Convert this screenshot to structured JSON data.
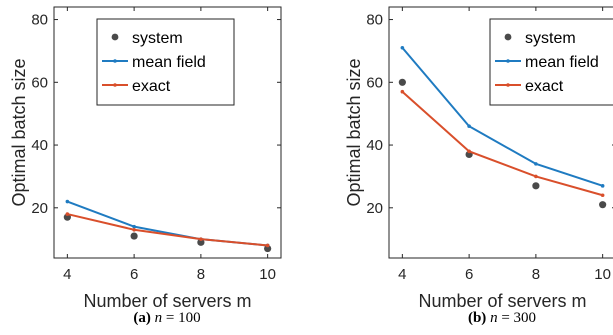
{
  "chart_data": [
    {
      "type": "line",
      "caption_tag": "(a)",
      "caption_var": "n",
      "caption_rest": " = 100",
      "xlabel": "Number of servers m",
      "ylabel": "Optimal batch size",
      "xlim": [
        3.6,
        10.4
      ],
      "ylim": [
        4,
        84
      ],
      "xticks": [
        4,
        6,
        8,
        10
      ],
      "yticks": [
        20,
        40,
        60,
        80
      ],
      "grid": false,
      "legend_position": "top-right",
      "x": [
        4,
        6,
        8,
        10
      ],
      "series": [
        {
          "name": "system",
          "style": "dots",
          "color": "#4a4a4a",
          "values": [
            17,
            11,
            9,
            7
          ]
        },
        {
          "name": "mean field",
          "style": "line",
          "color": "#1f7bc1",
          "values": [
            22,
            14,
            10,
            8
          ]
        },
        {
          "name": "exact",
          "style": "line",
          "color": "#d94f2b",
          "values": [
            18,
            13,
            10,
            8
          ]
        }
      ]
    },
    {
      "type": "line",
      "caption_tag": "(b)",
      "caption_var": "n",
      "caption_rest": " = 300",
      "xlabel": "Number of servers m",
      "ylabel": "Optimal batch size",
      "xlim": [
        3.6,
        10.4
      ],
      "ylim": [
        4,
        84
      ],
      "xticks": [
        4,
        6,
        8,
        10
      ],
      "yticks": [
        20,
        40,
        60,
        80
      ],
      "grid": false,
      "legend_position": "top-right",
      "x": [
        4,
        6,
        8,
        10
      ],
      "series": [
        {
          "name": "system",
          "style": "dots",
          "color": "#4a4a4a",
          "values": [
            60,
            37,
            27,
            21
          ]
        },
        {
          "name": "mean field",
          "style": "line",
          "color": "#1f7bc1",
          "values": [
            71,
            46,
            34,
            27
          ]
        },
        {
          "name": "exact",
          "style": "line",
          "color": "#d94f2b",
          "values": [
            57,
            38,
            30,
            24
          ]
        }
      ]
    }
  ]
}
